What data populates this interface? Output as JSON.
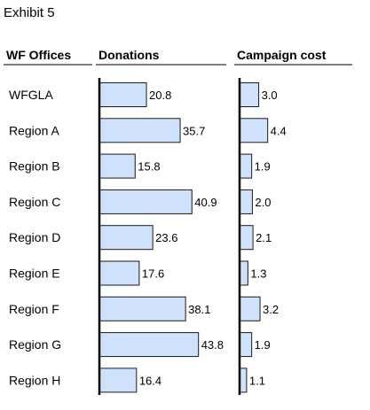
{
  "exhibit_title": "Exhibit 5",
  "colors": {
    "bar_fill": "#cfe2fb",
    "bar_stroke": "#1a1a1a",
    "axis": "#000000"
  },
  "chart_data": {
    "type": "bar",
    "orientation": "horizontal",
    "category_header": "WF Offices",
    "categories": [
      "WFGLA",
      "Region A",
      "Region B",
      "Region C",
      "Region D",
      "Region E",
      "Region F",
      "Region G",
      "Region H"
    ],
    "series": [
      {
        "name": "Donations",
        "values": [
          20.8,
          35.7,
          15.8,
          40.9,
          23.6,
          17.6,
          38.1,
          43.8,
          16.4
        ]
      },
      {
        "name": "Campaign cost",
        "values": [
          3.0,
          4.4,
          1.9,
          2.0,
          2.1,
          1.3,
          3.2,
          1.9,
          1.1
        ]
      }
    ],
    "value_labels": [
      [
        "20.8",
        "35.7",
        "15.8",
        "40.9",
        "23.6",
        "17.6",
        "38.1",
        "43.8",
        "16.4"
      ],
      [
        "3.0",
        "4.4",
        "1.9",
        "2.0",
        "2.1",
        "1.3",
        "3.2",
        "1.9",
        "1.1"
      ]
    ],
    "grid": false,
    "legend": "none"
  }
}
